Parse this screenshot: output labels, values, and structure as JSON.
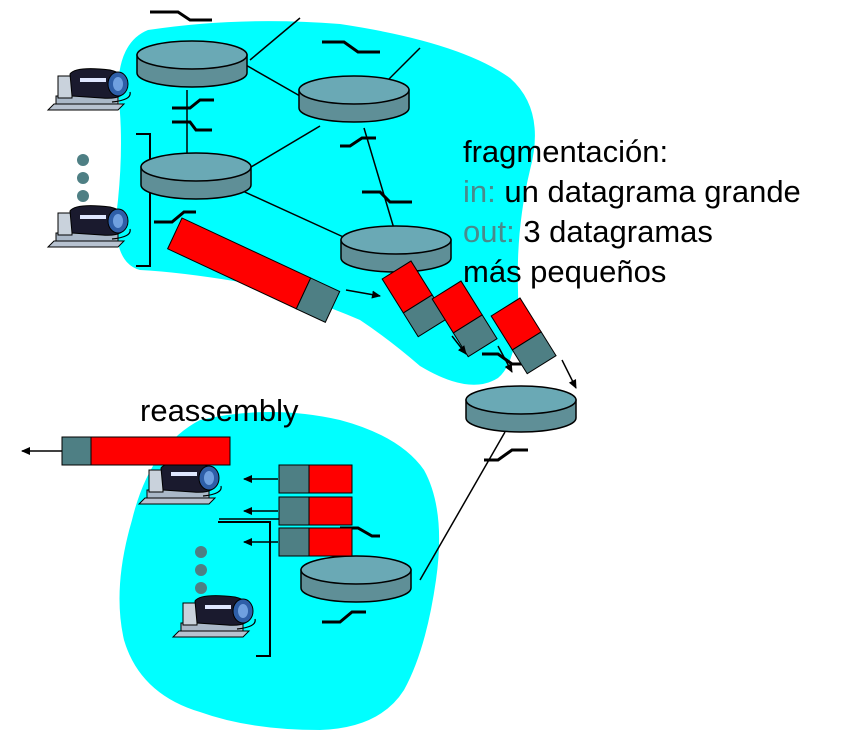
{
  "caption": {
    "title": "fragmentación:",
    "in_key": "in:",
    "in_text": " un datagrama grande",
    "out_key": "out:",
    "out_text": " 3 datagramas",
    "last_line": "más pequeños"
  },
  "reassembly_label": "reassembly",
  "colors": {
    "cloud": "#00ffff",
    "router_side": "#5f8f97",
    "router_top": "#6aa9b5",
    "fragment_payload": "#ff0000",
    "fragment_header": "#4e7f84",
    "key_text": "#4a8a8c"
  },
  "icons": [
    "router-icon",
    "host-computer-icon",
    "link-switch-icon",
    "arrow-icon",
    "ellipsis-dots-icon"
  ]
}
